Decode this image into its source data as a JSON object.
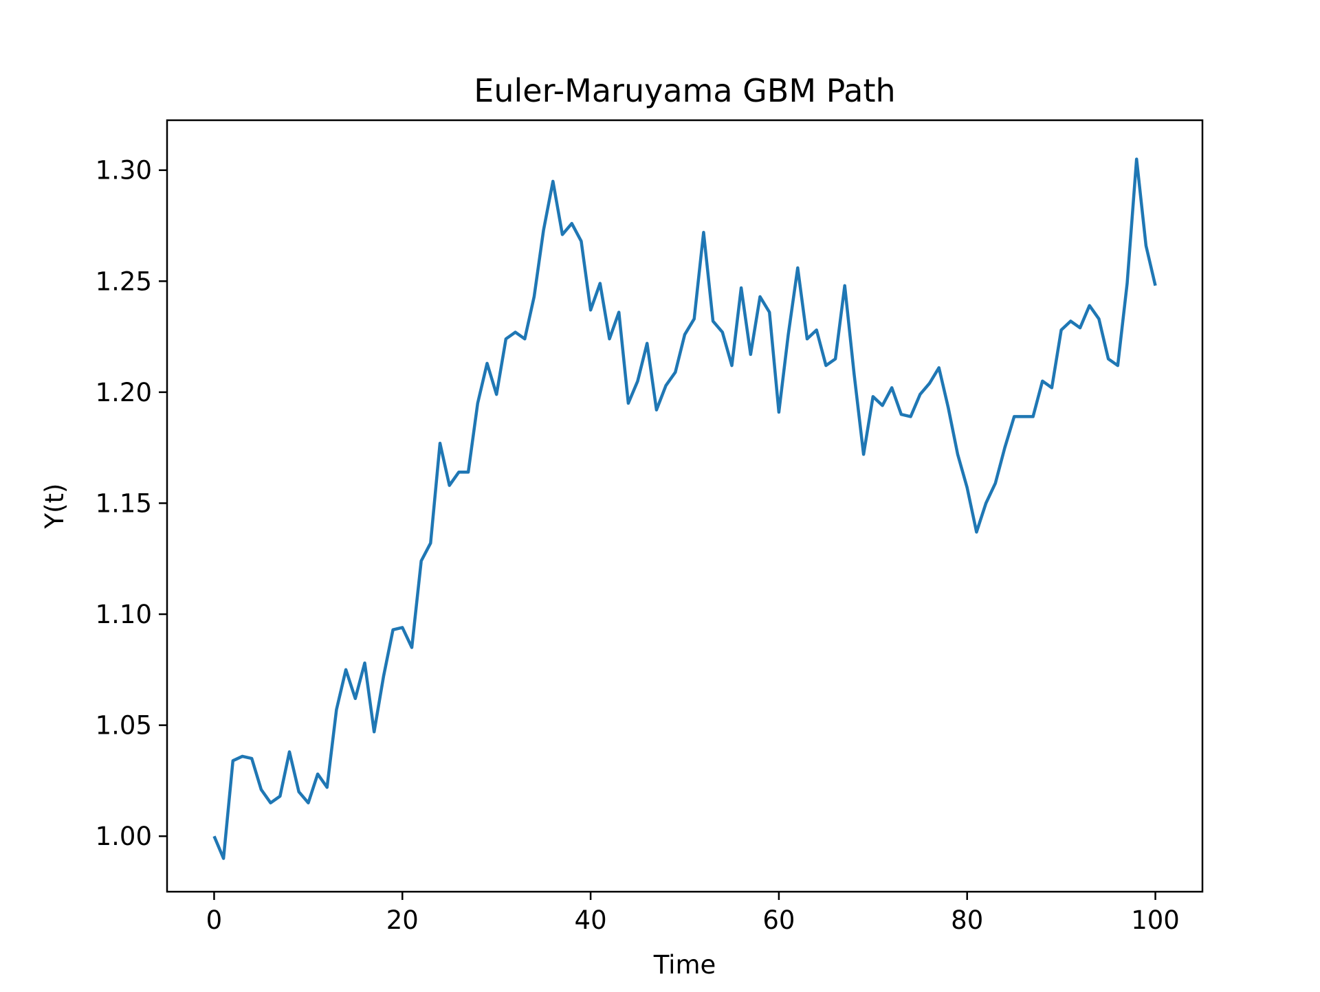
{
  "chart_data": {
    "type": "line",
    "title": "Euler-Maruyama GBM Path",
    "xlabel": "Time",
    "ylabel": "Y(t)",
    "xlim": [
      -5,
      105
    ],
    "ylim": [
      0.975,
      1.3225
    ],
    "xticks": [
      0,
      20,
      40,
      60,
      80,
      100
    ],
    "xtick_labels": [
      "0",
      "20",
      "40",
      "60",
      "80",
      "100"
    ],
    "yticks": [
      1.0,
      1.05,
      1.1,
      1.15,
      1.2,
      1.25,
      1.3
    ],
    "ytick_labels": [
      "1.00",
      "1.05",
      "1.10",
      "1.15",
      "1.20",
      "1.25",
      "1.30"
    ],
    "grid": false,
    "line_color": "#1f77b4",
    "series": [
      {
        "x": [
          0,
          1,
          2,
          3,
          4,
          5,
          6,
          7,
          8,
          9,
          10,
          11,
          12,
          13,
          14,
          15,
          16,
          17,
          18,
          19,
          20,
          21,
          22,
          23,
          24,
          25,
          26,
          27,
          28,
          29,
          30,
          31,
          32,
          33,
          34,
          35,
          36,
          37,
          38,
          39,
          40,
          41,
          42,
          43,
          44,
          45,
          46,
          47,
          48,
          49,
          50,
          51,
          52,
          53,
          54,
          55,
          56,
          57,
          58,
          59,
          60,
          61,
          62,
          63,
          64,
          65,
          66,
          67,
          68,
          69,
          70,
          71,
          72,
          73,
          74,
          75,
          76,
          77,
          78,
          79,
          80,
          81,
          82,
          83,
          84,
          85,
          86,
          87,
          88,
          89,
          90,
          91,
          92,
          93,
          94,
          95,
          96,
          97,
          98,
          99,
          100
        ],
        "values": [
          1.0,
          0.99,
          1.034,
          1.036,
          1.035,
          1.021,
          1.015,
          1.018,
          1.038,
          1.02,
          1.015,
          1.028,
          1.022,
          1.057,
          1.075,
          1.062,
          1.078,
          1.047,
          1.072,
          1.093,
          1.094,
          1.085,
          1.124,
          1.132,
          1.177,
          1.158,
          1.164,
          1.164,
          1.195,
          1.213,
          1.199,
          1.224,
          1.227,
          1.224,
          1.243,
          1.273,
          1.295,
          1.271,
          1.276,
          1.268,
          1.237,
          1.249,
          1.224,
          1.236,
          1.195,
          1.205,
          1.222,
          1.192,
          1.203,
          1.209,
          1.226,
          1.233,
          1.272,
          1.232,
          1.227,
          1.212,
          1.247,
          1.217,
          1.243,
          1.236,
          1.191,
          1.226,
          1.256,
          1.224,
          1.228,
          1.212,
          1.215,
          1.248,
          1.208,
          1.172,
          1.198,
          1.194,
          1.202,
          1.19,
          1.189,
          1.199,
          1.204,
          1.211,
          1.193,
          1.172,
          1.157,
          1.137,
          1.15,
          1.159,
          1.175,
          1.189,
          1.189,
          1.189,
          1.205,
          1.202,
          1.228,
          1.232,
          1.229,
          1.239,
          1.233,
          1.215,
          1.212,
          1.249,
          1.305,
          1.266,
          1.248
        ]
      }
    ]
  }
}
